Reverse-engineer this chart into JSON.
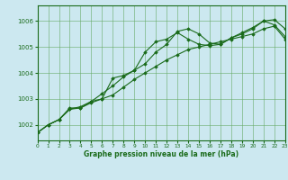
{
  "x": [
    0,
    1,
    2,
    3,
    4,
    5,
    6,
    7,
    8,
    9,
    10,
    11,
    12,
    13,
    14,
    15,
    16,
    17,
    18,
    19,
    20,
    21,
    22,
    23
  ],
  "line1": [
    1001.7,
    1002.0,
    1002.2,
    1002.6,
    1002.7,
    1002.9,
    1003.0,
    1003.8,
    1003.9,
    1004.1,
    1004.8,
    1005.2,
    1005.3,
    1005.55,
    1005.3,
    1005.1,
    1005.05,
    1005.1,
    1005.35,
    1005.5,
    1005.7,
    1006.0,
    1006.05,
    1005.7
  ],
  "line2": [
    1001.7,
    1002.0,
    1002.2,
    1002.65,
    1002.65,
    1002.9,
    1003.2,
    1003.5,
    1003.85,
    1004.1,
    1004.35,
    1004.8,
    1005.1,
    1005.6,
    1005.7,
    1005.5,
    1005.15,
    1005.1,
    1005.35,
    1005.55,
    1005.75,
    1006.0,
    1005.85,
    1005.4
  ],
  "line3": [
    1001.7,
    1002.0,
    1002.2,
    1002.6,
    1002.65,
    1002.85,
    1003.0,
    1003.15,
    1003.45,
    1003.75,
    1004.0,
    1004.25,
    1004.5,
    1004.7,
    1004.9,
    1005.0,
    1005.1,
    1005.2,
    1005.3,
    1005.4,
    1005.5,
    1005.7,
    1005.8,
    1005.3
  ],
  "line_color": "#1a6b1a",
  "bg_color": "#cce8f0",
  "grid_color": "#66aa66",
  "title": "Graphe pression niveau de la mer (hPa)",
  "ylim_min": 1001.4,
  "ylim_max": 1006.6,
  "xlim_min": 0,
  "xlim_max": 23,
  "yticks": [
    1002,
    1003,
    1004,
    1005,
    1006
  ],
  "xticks": [
    0,
    1,
    2,
    3,
    4,
    5,
    6,
    7,
    8,
    9,
    10,
    11,
    12,
    13,
    14,
    15,
    16,
    17,
    18,
    19,
    20,
    21,
    22,
    23
  ]
}
